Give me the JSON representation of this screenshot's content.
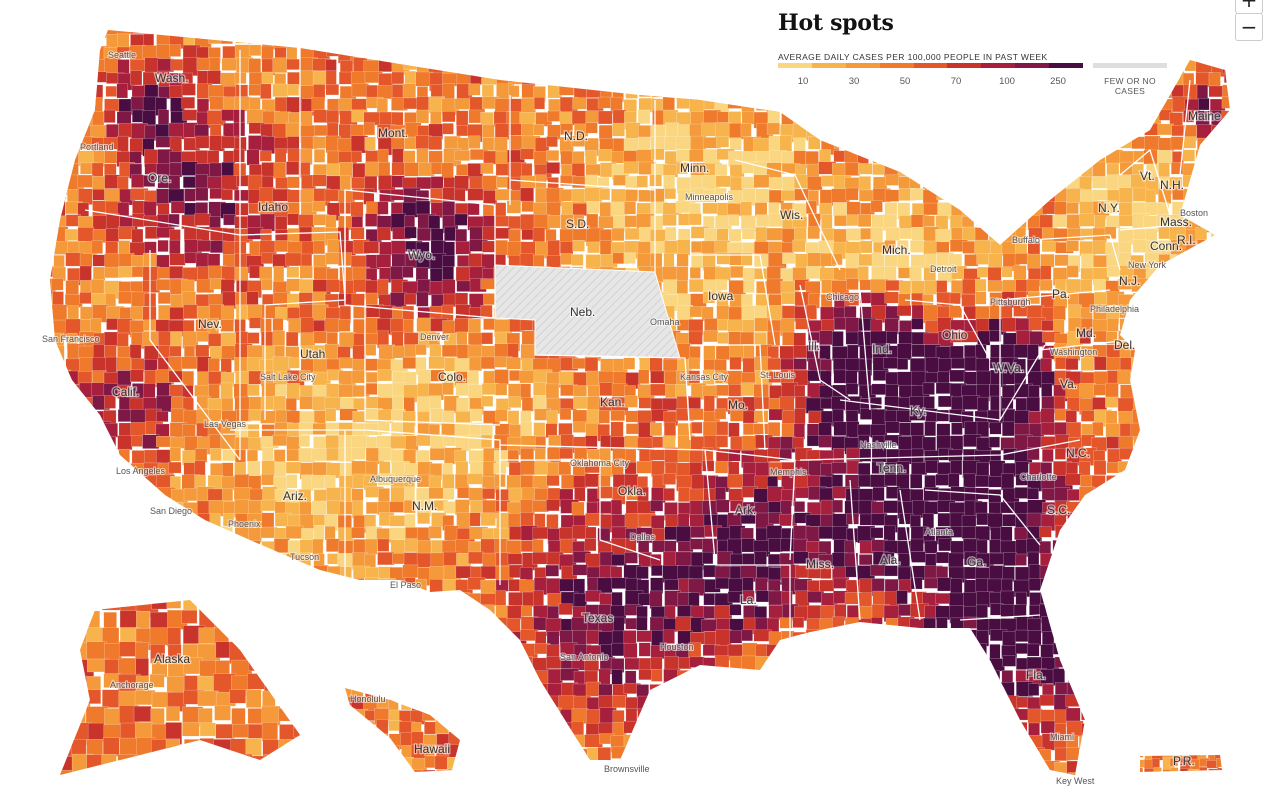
{
  "title": "Hot spots",
  "legend": {
    "subtitle": "AVERAGE DAILY CASES PER 100,000 PEOPLE IN PAST WEEK",
    "ticks": [
      "10",
      "30",
      "50",
      "70",
      "100",
      "250"
    ],
    "colors": [
      "#f9d67f",
      "#f7b44d",
      "#f59a3a",
      "#ef7a2c",
      "#e4572a",
      "#c8332c",
      "#a61f3c",
      "#7f1845",
      "#4a0d41"
    ],
    "no_cases_label": "FEW OR NO CASES",
    "no_cases_color": "#dedede"
  },
  "zoom": {
    "in": "+",
    "out": "−"
  },
  "states": [
    "Wash.",
    "Ore.",
    "Calif.",
    "Idaho",
    "Nev.",
    "Mont.",
    "Wyo.",
    "Utah",
    "Colo.",
    "Ariz.",
    "N.M.",
    "N.D.",
    "S.D.",
    "Neb.",
    "Kan.",
    "Okla.",
    "Texas",
    "Minn.",
    "Iowa",
    "Mo.",
    "Ark.",
    "La.",
    "Wis.",
    "Ill.",
    "Mich.",
    "Ind.",
    "Ohio",
    "Ky.",
    "Tenn.",
    "Miss.",
    "Ala.",
    "Ga.",
    "Fla.",
    "S.C.",
    "N.C.",
    "Va.",
    "W.Va.",
    "Pa.",
    "N.Y.",
    "Md.",
    "Del.",
    "N.J.",
    "Conn.",
    "R.I.",
    "Mass.",
    "Vt.",
    "N.H.",
    "Maine",
    "Alaska",
    "Hawaii",
    "P.R."
  ],
  "cities": [
    "Seattle",
    "Portland",
    "San Francisco",
    "Los Angeles",
    "San Diego",
    "Las Vegas",
    "Phoenix",
    "Tucson",
    "Salt Lake City",
    "Denver",
    "Albuquerque",
    "El Paso",
    "Dallas",
    "Houston",
    "San Antonio",
    "Oklahoma City",
    "Kansas City",
    "Omaha",
    "Minneapolis",
    "Chicago",
    "Detroit",
    "St. Louis",
    "Memphis",
    "Nashville",
    "Atlanta",
    "Charlotte",
    "Miami",
    "New York",
    "Boston",
    "Philadelphia",
    "Washington",
    "Pittsburgh",
    "Buffalo",
    "Anchorage",
    "Honolulu",
    "Brownsville",
    "Key West"
  ]
}
